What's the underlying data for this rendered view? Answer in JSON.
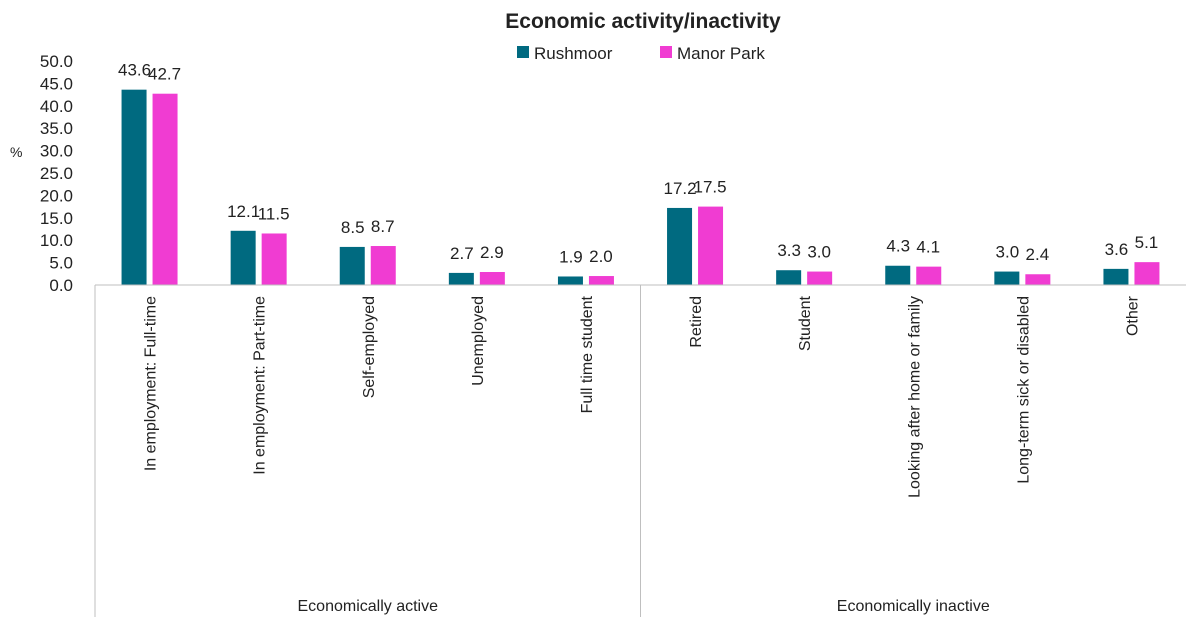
{
  "chart_data": {
    "type": "bar",
    "title": "Economic activity/inactivity",
    "ylabel": "%",
    "xlabel": "",
    "ylim": [
      0,
      50
    ],
    "yticks": [
      "0.0",
      "5.0",
      "10.0",
      "15.0",
      "20.0",
      "25.0",
      "30.0",
      "35.0",
      "40.0",
      "45.0",
      "50.0"
    ],
    "legend_position": "top",
    "grid": false,
    "categories": [
      "In employment: Full-time",
      "In employment: Part-time",
      "Self-employed",
      "Unemployed",
      "Full time student",
      "Retired",
      "Student",
      "Looking after home or family",
      "Long-term sick or disabled",
      "Other"
    ],
    "groups": [
      {
        "label": "Economically active",
        "count": 5
      },
      {
        "label": "Economically inactive",
        "count": 5
      }
    ],
    "series": [
      {
        "name": "Rushmoor",
        "color": "#006a80",
        "values": [
          43.6,
          12.1,
          8.5,
          2.7,
          1.9,
          17.2,
          3.3,
          4.3,
          3.0,
          3.6
        ]
      },
      {
        "name": "Manor Park",
        "color": "#f03cd2",
        "values": [
          42.7,
          11.5,
          8.7,
          2.9,
          2.0,
          17.5,
          3.0,
          4.1,
          2.4,
          5.1
        ]
      }
    ]
  }
}
